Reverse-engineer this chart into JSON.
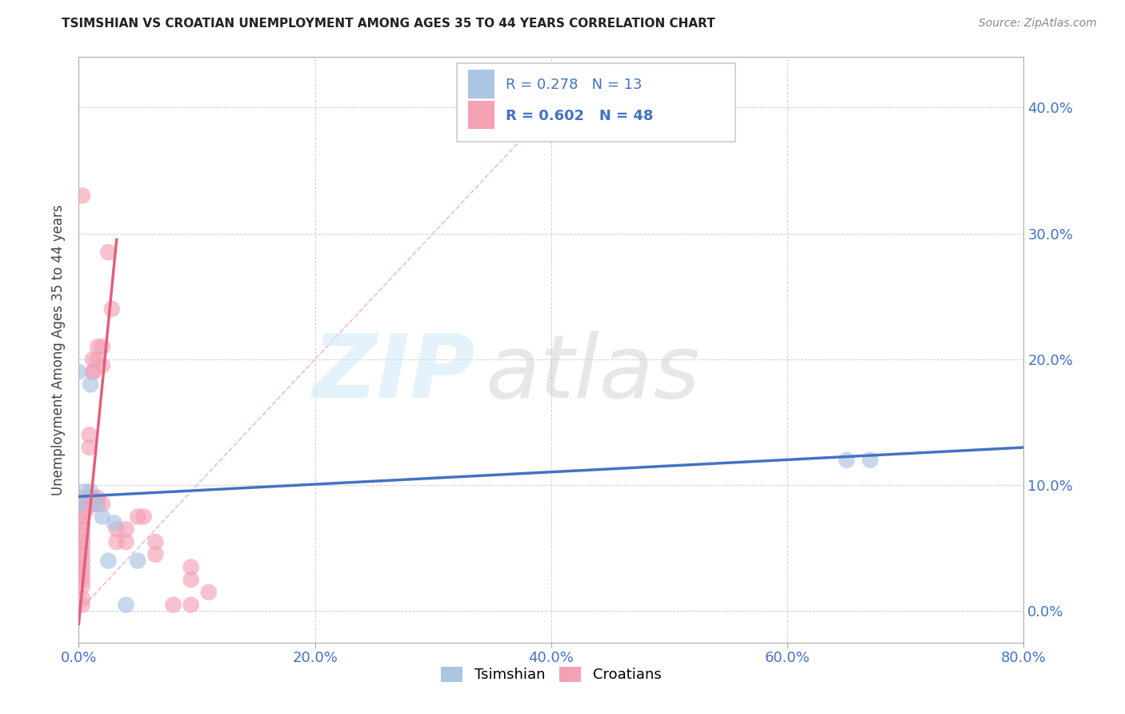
{
  "title": "TSIMSHIAN VS CROATIAN UNEMPLOYMENT AMONG AGES 35 TO 44 YEARS CORRELATION CHART",
  "source": "Source: ZipAtlas.com",
  "ylabel": "Unemployment Among Ages 35 to 44 years",
  "xlim": [
    0.0,
    0.8
  ],
  "ylim": [
    -0.025,
    0.44
  ],
  "x_ticks": [
    0.0,
    0.2,
    0.4,
    0.6,
    0.8
  ],
  "x_tick_labels": [
    "0.0%",
    "20.0%",
    "40.0%",
    "60.0%",
    "80.0%"
  ],
  "y_ticks": [
    0.0,
    0.1,
    0.2,
    0.3,
    0.4
  ],
  "y_tick_labels": [
    "0.0%",
    "10.0%",
    "20.0%",
    "30.0%",
    "40.0%"
  ],
  "tsimshian_R": 0.278,
  "tsimshian_N": 13,
  "croatian_R": 0.602,
  "croatian_N": 48,
  "tsimshian_color": "#aac4e2",
  "croatian_color": "#f4a0b5",
  "tsimshian_line_color": "#4472c4",
  "croatian_line_color": "#e0607a",
  "diag_color": "#f0b0c0",
  "tsimshian_points": [
    [
      0.0,
      0.19
    ],
    [
      0.0,
      0.085
    ],
    [
      0.005,
      0.095
    ],
    [
      0.01,
      0.18
    ],
    [
      0.01,
      0.095
    ],
    [
      0.015,
      0.085
    ],
    [
      0.02,
      0.075
    ],
    [
      0.025,
      0.04
    ],
    [
      0.03,
      0.07
    ],
    [
      0.04,
      0.005
    ],
    [
      0.05,
      0.04
    ],
    [
      0.65,
      0.12
    ],
    [
      0.67,
      0.12
    ]
  ],
  "croatian_points": [
    [
      0.003,
      0.33
    ],
    [
      0.003,
      0.005
    ],
    [
      0.003,
      0.01
    ],
    [
      0.003,
      0.02
    ],
    [
      0.003,
      0.025
    ],
    [
      0.003,
      0.03
    ],
    [
      0.003,
      0.035
    ],
    [
      0.003,
      0.04
    ],
    [
      0.003,
      0.045
    ],
    [
      0.003,
      0.05
    ],
    [
      0.003,
      0.055
    ],
    [
      0.003,
      0.06
    ],
    [
      0.003,
      0.065
    ],
    [
      0.003,
      0.07
    ],
    [
      0.003,
      0.075
    ],
    [
      0.003,
      0.085
    ],
    [
      0.003,
      0.09
    ],
    [
      0.006,
      0.08
    ],
    [
      0.009,
      0.13
    ],
    [
      0.009,
      0.14
    ],
    [
      0.009,
      0.09
    ],
    [
      0.012,
      0.19
    ],
    [
      0.012,
      0.2
    ],
    [
      0.012,
      0.19
    ],
    [
      0.012,
      0.085
    ],
    [
      0.012,
      0.09
    ],
    [
      0.016,
      0.21
    ],
    [
      0.016,
      0.2
    ],
    [
      0.016,
      0.085
    ],
    [
      0.016,
      0.09
    ],
    [
      0.02,
      0.195
    ],
    [
      0.02,
      0.21
    ],
    [
      0.02,
      0.085
    ],
    [
      0.025,
      0.285
    ],
    [
      0.028,
      0.24
    ],
    [
      0.032,
      0.065
    ],
    [
      0.032,
      0.055
    ],
    [
      0.04,
      0.065
    ],
    [
      0.04,
      0.055
    ],
    [
      0.05,
      0.075
    ],
    [
      0.055,
      0.075
    ],
    [
      0.065,
      0.055
    ],
    [
      0.065,
      0.045
    ],
    [
      0.08,
      0.005
    ],
    [
      0.095,
      0.005
    ],
    [
      0.095,
      0.025
    ],
    [
      0.095,
      0.035
    ],
    [
      0.11,
      0.015
    ]
  ],
  "tsimshian_trendline": [
    [
      0.0,
      0.091
    ],
    [
      0.8,
      0.13
    ]
  ],
  "croatian_trendline": [
    [
      0.0,
      -0.01
    ],
    [
      0.032,
      0.295
    ]
  ],
  "diag_line": [
    [
      0.0,
      0.0
    ],
    [
      0.4,
      0.4
    ]
  ]
}
